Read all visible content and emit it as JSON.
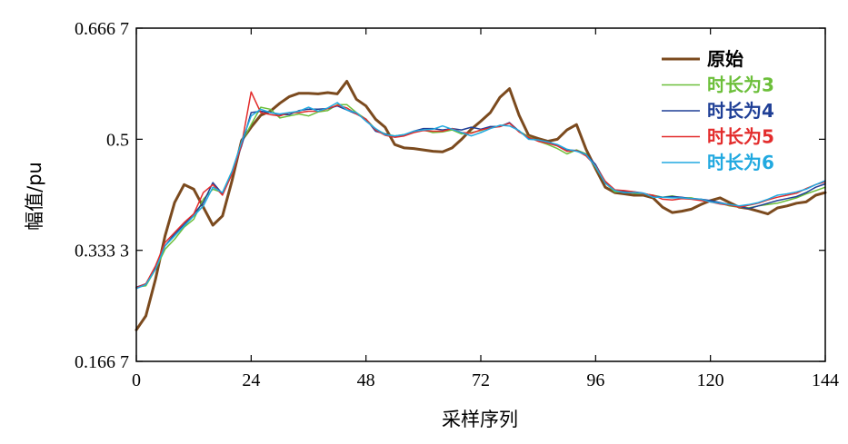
{
  "chart_data": {
    "type": "line",
    "xlabel": "采样序列",
    "ylabel": "幅值/pu",
    "xlim": [
      0,
      144
    ],
    "ylim": [
      0.1667,
      0.6667
    ],
    "xticks": [
      0,
      24,
      48,
      72,
      96,
      120,
      144
    ],
    "xtick_labels": [
      "0",
      "24",
      "48",
      "72",
      "96",
      "120",
      "144"
    ],
    "yticks": [
      0.1667,
      0.3333,
      0.5,
      0.6667
    ],
    "ytick_labels": [
      "0.166 7",
      "0.333 3",
      "0.5",
      "0.666 7"
    ],
    "grid": false,
    "legend_position": "top-right",
    "series": [
      {
        "name": "原始",
        "color": "#7b4a1e",
        "x": [
          0,
          2,
          4,
          6,
          8,
          10,
          12,
          14,
          16,
          18,
          20,
          22,
          24,
          26,
          28,
          30,
          32,
          34,
          36,
          38,
          40,
          42,
          44,
          46,
          48,
          50,
          52,
          54,
          56,
          58,
          60,
          62,
          64,
          66,
          68,
          70,
          72,
          74,
          76,
          78,
          80,
          82,
          84,
          86,
          88,
          90,
          92,
          94,
          96,
          98,
          100,
          102,
          104,
          106,
          108,
          110,
          112,
          114,
          116,
          118,
          120,
          122,
          124,
          126,
          128,
          130,
          132,
          134,
          136,
          138,
          140,
          142,
          144
        ],
        "values": [
          0.214,
          0.235,
          0.29,
          0.355,
          0.405,
          0.432,
          0.425,
          0.398,
          0.371,
          0.385,
          0.438,
          0.498,
          0.518,
          0.536,
          0.542,
          0.554,
          0.564,
          0.569,
          0.569,
          0.568,
          0.57,
          0.568,
          0.587,
          0.56,
          0.55,
          0.53,
          0.518,
          0.492,
          0.487,
          0.486,
          0.484,
          0.482,
          0.481,
          0.487,
          0.5,
          0.515,
          0.527,
          0.54,
          0.563,
          0.576,
          0.536,
          0.506,
          0.501,
          0.497,
          0.5,
          0.514,
          0.522,
          0.485,
          0.456,
          0.428,
          0.42,
          0.418,
          0.416,
          0.416,
          0.412,
          0.398,
          0.39,
          0.392,
          0.395,
          0.402,
          0.408,
          0.412,
          0.405,
          0.398,
          0.396,
          0.392,
          0.388,
          0.397,
          0.4,
          0.404,
          0.406,
          0.416,
          0.42
        ]
      },
      {
        "name": "时长为3",
        "color": "#6cbf3a",
        "x": [
          0,
          2,
          4,
          6,
          8,
          10,
          12,
          14,
          16,
          18,
          20,
          22,
          24,
          26,
          28,
          30,
          32,
          34,
          36,
          38,
          40,
          42,
          44,
          46,
          48,
          50,
          52,
          54,
          56,
          58,
          60,
          62,
          64,
          66,
          68,
          70,
          72,
          74,
          76,
          78,
          80,
          82,
          84,
          86,
          88,
          90,
          92,
          94,
          96,
          98,
          100,
          102,
          104,
          106,
          108,
          110,
          112,
          114,
          116,
          118,
          120,
          122,
          124,
          126,
          128,
          130,
          132,
          134,
          136,
          138,
          140,
          142,
          144
        ],
        "values": [
          0.278,
          0.28,
          0.305,
          0.335,
          0.35,
          0.368,
          0.38,
          0.41,
          0.425,
          0.42,
          0.452,
          0.495,
          0.522,
          0.548,
          0.545,
          0.532,
          0.535,
          0.538,
          0.535,
          0.541,
          0.543,
          0.552,
          0.552,
          0.54,
          0.53,
          0.515,
          0.508,
          0.505,
          0.507,
          0.511,
          0.514,
          0.51,
          0.511,
          0.514,
          0.508,
          0.51,
          0.513,
          0.518,
          0.52,
          0.524,
          0.512,
          0.504,
          0.497,
          0.492,
          0.486,
          0.478,
          0.484,
          0.478,
          0.458,
          0.435,
          0.421,
          0.421,
          0.419,
          0.418,
          0.416,
          0.413,
          0.415,
          0.412,
          0.412,
          0.409,
          0.407,
          0.404,
          0.4,
          0.398,
          0.397,
          0.4,
          0.402,
          0.404,
          0.408,
          0.412,
          0.418,
          0.423,
          0.428
        ]
      },
      {
        "name": "时长为4",
        "color": "#1f3f96",
        "x": [
          0,
          2,
          4,
          6,
          8,
          10,
          12,
          14,
          16,
          18,
          20,
          22,
          24,
          26,
          28,
          30,
          32,
          34,
          36,
          38,
          40,
          42,
          44,
          46,
          48,
          50,
          52,
          54,
          56,
          58,
          60,
          62,
          64,
          66,
          68,
          70,
          72,
          74,
          76,
          78,
          80,
          82,
          84,
          86,
          88,
          90,
          92,
          94,
          96,
          98,
          100,
          102,
          104,
          106,
          108,
          110,
          112,
          114,
          116,
          118,
          120,
          122,
          124,
          126,
          128,
          130,
          132,
          134,
          136,
          138,
          140,
          142,
          144
        ],
        "values": [
          0.278,
          0.283,
          0.308,
          0.34,
          0.358,
          0.372,
          0.388,
          0.405,
          0.435,
          0.418,
          0.45,
          0.49,
          0.54,
          0.542,
          0.54,
          0.537,
          0.537,
          0.543,
          0.545,
          0.545,
          0.546,
          0.55,
          0.544,
          0.538,
          0.53,
          0.512,
          0.508,
          0.504,
          0.506,
          0.512,
          0.516,
          0.516,
          0.514,
          0.516,
          0.514,
          0.518,
          0.515,
          0.519,
          0.519,
          0.525,
          0.512,
          0.502,
          0.498,
          0.496,
          0.491,
          0.484,
          0.483,
          0.477,
          0.462,
          0.436,
          0.424,
          0.422,
          0.421,
          0.419,
          0.415,
          0.413,
          0.414,
          0.413,
          0.411,
          0.41,
          0.408,
          0.405,
          0.402,
          0.399,
          0.396,
          0.4,
          0.404,
          0.408,
          0.411,
          0.414,
          0.42,
          0.428,
          0.433
        ]
      },
      {
        "name": "时长为5",
        "color": "#e32c2c",
        "x": [
          0,
          2,
          4,
          6,
          8,
          10,
          12,
          14,
          16,
          18,
          20,
          22,
          24,
          26,
          28,
          30,
          32,
          34,
          36,
          38,
          40,
          42,
          44,
          46,
          48,
          50,
          52,
          54,
          56,
          58,
          60,
          62,
          64,
          66,
          68,
          70,
          72,
          74,
          76,
          78,
          80,
          82,
          84,
          86,
          88,
          90,
          92,
          94,
          96,
          98,
          100,
          102,
          104,
          106,
          108,
          110,
          112,
          114,
          116,
          118,
          120,
          122,
          124,
          126,
          128,
          130,
          132,
          134,
          136,
          138,
          140,
          142,
          144
        ],
        "values": [
          0.277,
          0.283,
          0.31,
          0.345,
          0.36,
          0.375,
          0.388,
          0.42,
          0.432,
          0.416,
          0.448,
          0.492,
          0.571,
          0.54,
          0.537,
          0.535,
          0.54,
          0.54,
          0.542,
          0.542,
          0.546,
          0.551,
          0.547,
          0.538,
          0.53,
          0.514,
          0.506,
          0.503,
          0.505,
          0.51,
          0.513,
          0.512,
          0.512,
          0.516,
          0.51,
          0.509,
          0.514,
          0.517,
          0.519,
          0.524,
          0.511,
          0.503,
          0.497,
          0.494,
          0.49,
          0.482,
          0.483,
          0.475,
          0.46,
          0.437,
          0.424,
          0.423,
          0.421,
          0.418,
          0.416,
          0.41,
          0.409,
          0.411,
          0.41,
          0.408,
          0.406,
          0.403,
          0.401,
          0.398,
          0.401,
          0.404,
          0.409,
          0.413,
          0.416,
          0.419,
          0.426,
          0.432,
          0.436
        ]
      },
      {
        "name": "时长为6",
        "color": "#21a9e0",
        "x": [
          0,
          2,
          4,
          6,
          8,
          10,
          12,
          14,
          16,
          18,
          20,
          22,
          24,
          26,
          28,
          30,
          32,
          34,
          36,
          38,
          40,
          42,
          44,
          46,
          48,
          50,
          52,
          54,
          56,
          58,
          60,
          62,
          64,
          66,
          68,
          70,
          72,
          74,
          76,
          78,
          80,
          82,
          84,
          86,
          88,
          90,
          92,
          94,
          96,
          98,
          100,
          102,
          104,
          106,
          108,
          110,
          112,
          114,
          116,
          118,
          120,
          122,
          124,
          126,
          128,
          130,
          132,
          134,
          136,
          138,
          140,
          142,
          144
        ],
        "values": [
          0.276,
          0.282,
          0.305,
          0.34,
          0.355,
          0.37,
          0.385,
          0.4,
          0.428,
          0.42,
          0.452,
          0.496,
          0.535,
          0.545,
          0.54,
          0.538,
          0.54,
          0.542,
          0.548,
          0.542,
          0.547,
          0.555,
          0.544,
          0.54,
          0.527,
          0.516,
          0.507,
          0.505,
          0.507,
          0.512,
          0.514,
          0.515,
          0.52,
          0.515,
          0.51,
          0.505,
          0.51,
          0.516,
          0.521,
          0.52,
          0.513,
          0.5,
          0.499,
          0.496,
          0.492,
          0.485,
          0.482,
          0.477,
          0.459,
          0.434,
          0.423,
          0.42,
          0.42,
          0.419,
          0.413,
          0.413,
          0.412,
          0.412,
          0.411,
          0.41,
          0.406,
          0.404,
          0.402,
          0.4,
          0.402,
          0.405,
          0.41,
          0.416,
          0.418,
          0.421,
          0.425,
          0.432,
          0.438
        ]
      }
    ]
  }
}
